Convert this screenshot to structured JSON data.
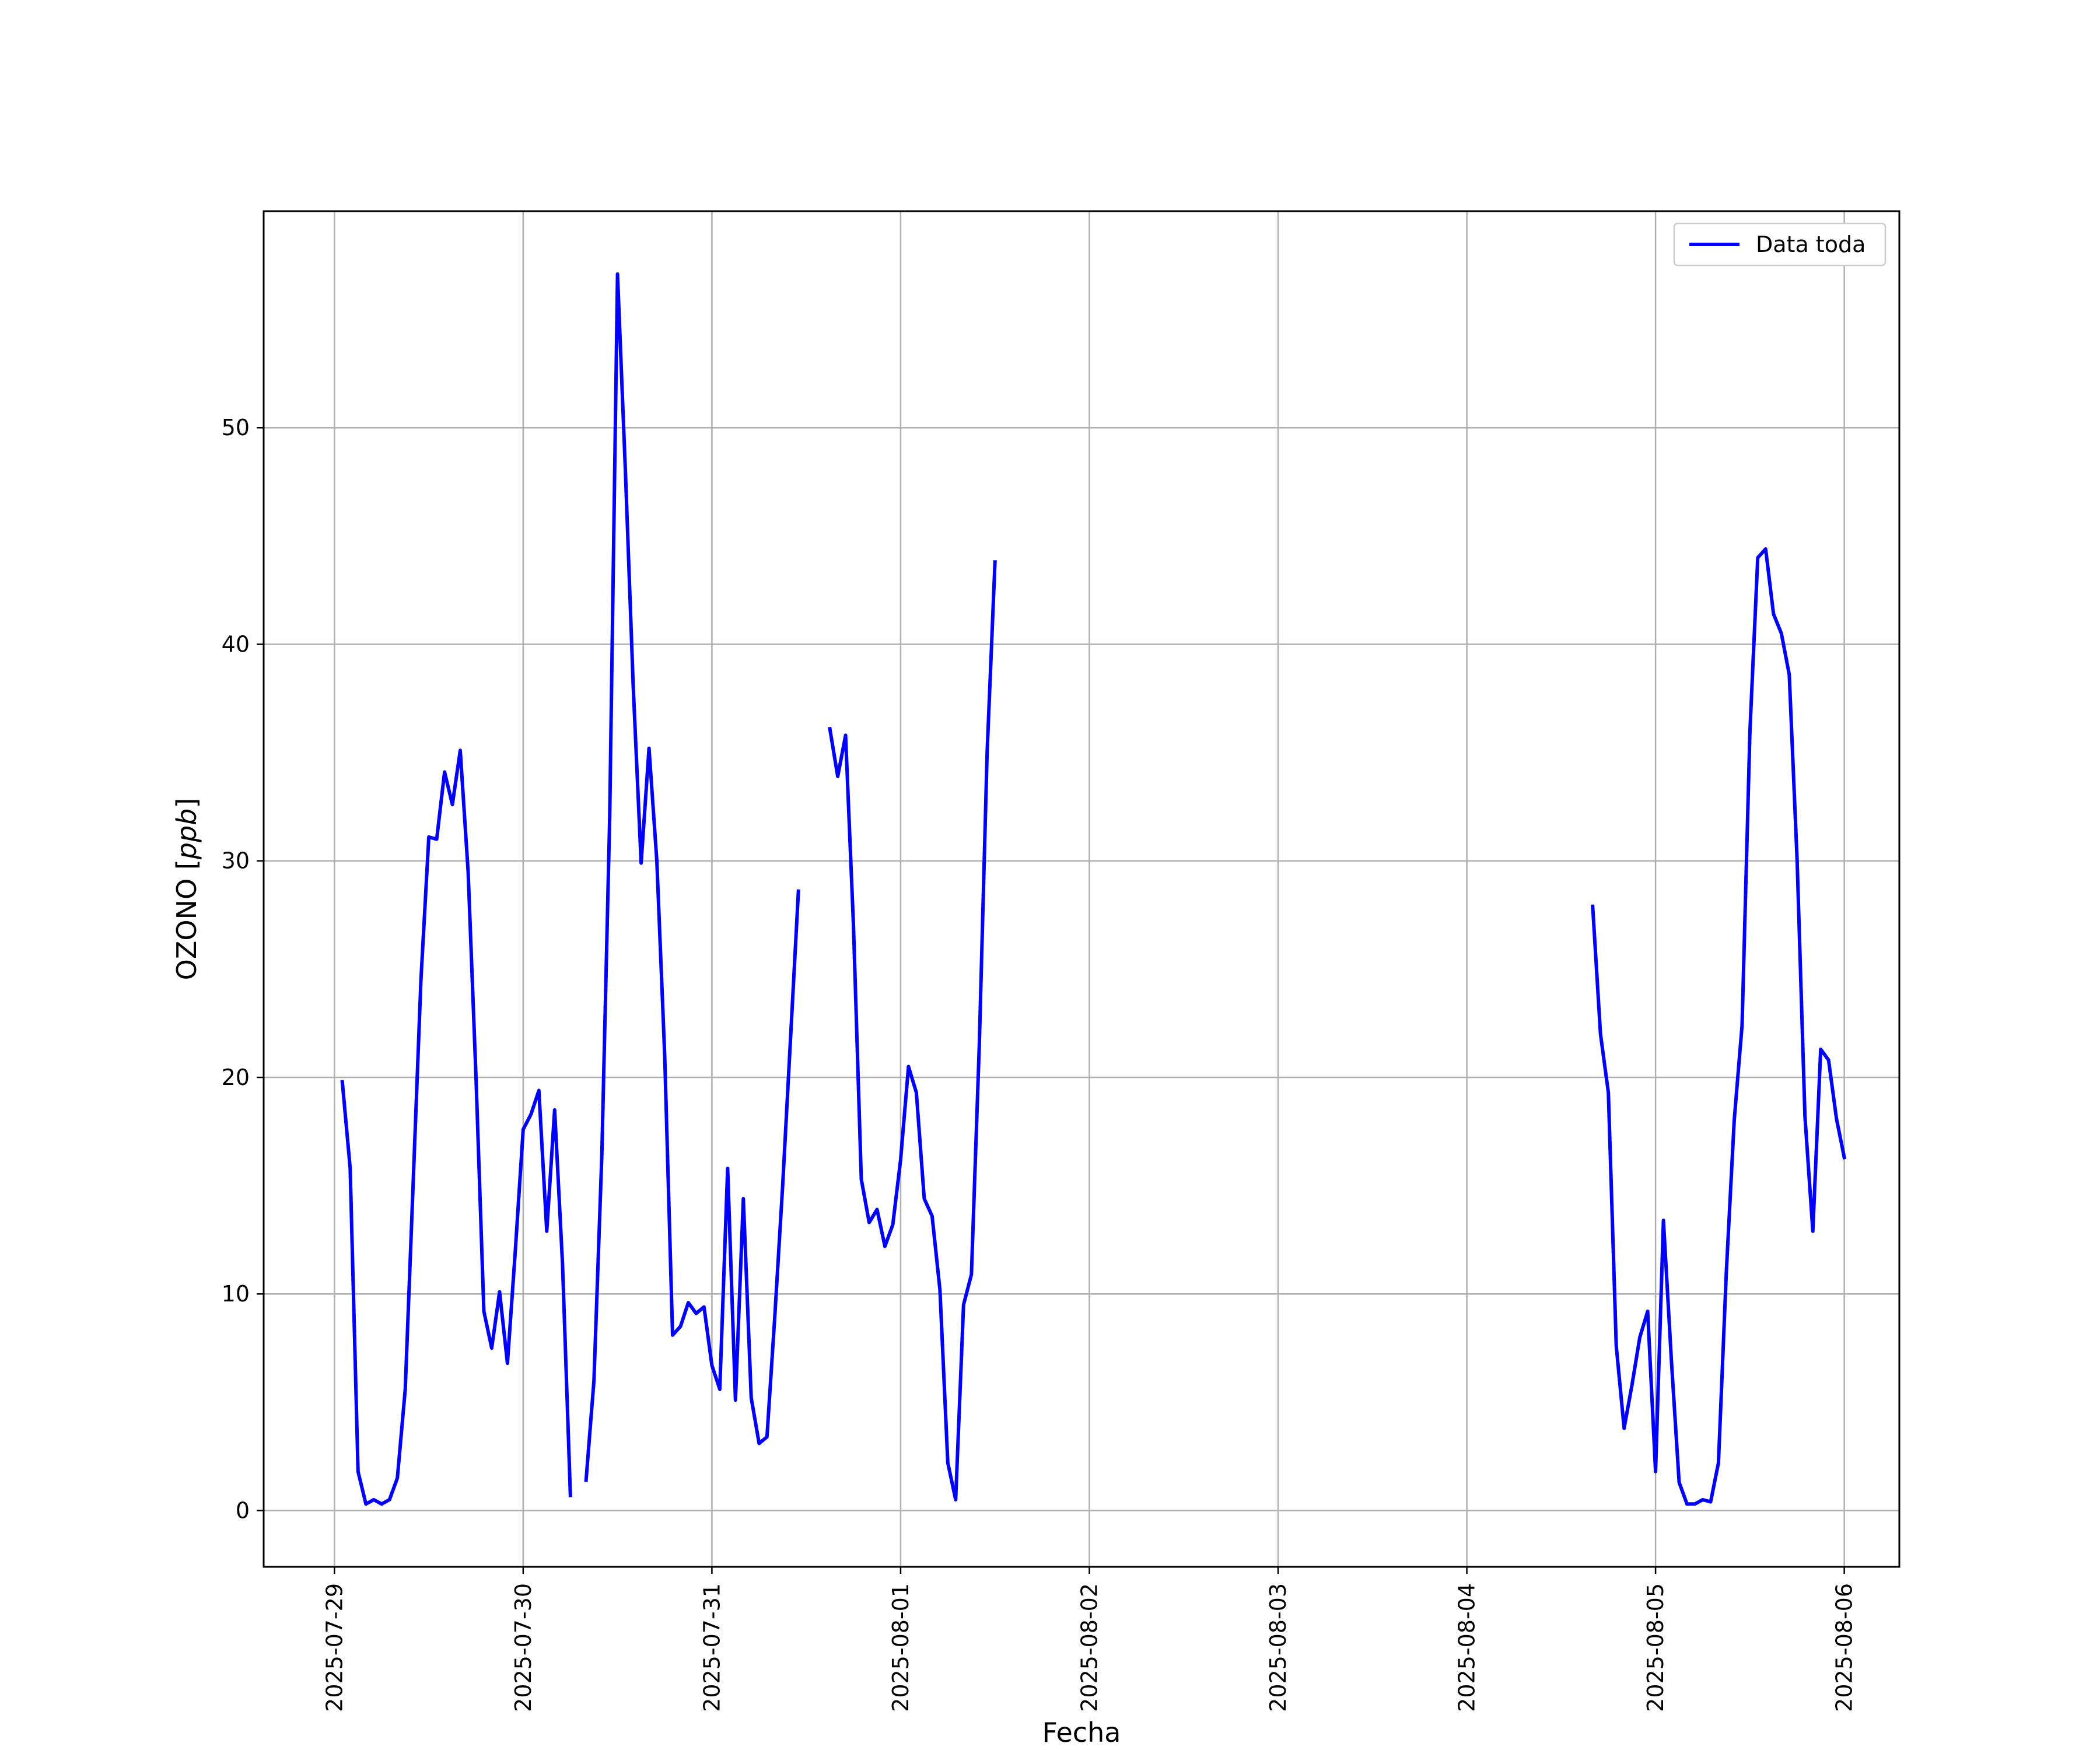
{
  "chart_data": {
    "type": "line",
    "title": "",
    "xlabel": "Fecha",
    "ylabel_main": "OZONO [",
    "ylabel_unit": "ppb",
    "ylabel_end": "]",
    "x_start": "2025-07-29",
    "xlim": [
      "2025-07-28 15:00",
      "2025-08-06 07:00"
    ],
    "ylim": [
      -2.6,
      60.0
    ],
    "xticks": [
      "2025-07-29",
      "2025-07-30",
      "2025-07-31",
      "2025-08-01",
      "2025-08-02",
      "2025-08-03",
      "2025-08-04",
      "2025-08-05",
      "2025-08-06"
    ],
    "yticks": [
      0,
      10,
      20,
      30,
      40,
      50
    ],
    "grid": true,
    "legend": "top-right",
    "color": "#0000ff",
    "series": [
      {
        "name": "Data toda",
        "points": [
          [
            "2025-07-29 01:00",
            19.8
          ],
          [
            "2025-07-29 02:00",
            15.8
          ],
          [
            "2025-07-29 03:00",
            1.8
          ],
          [
            "2025-07-29 04:00",
            0.3
          ],
          [
            "2025-07-29 05:00",
            0.5
          ],
          [
            "2025-07-29 06:00",
            0.3
          ],
          [
            "2025-07-29 07:00",
            0.5
          ],
          [
            "2025-07-29 08:00",
            1.5
          ],
          [
            "2025-07-29 09:00",
            5.6
          ],
          [
            "2025-07-29 10:00",
            15.0
          ],
          [
            "2025-07-29 11:00",
            24.5
          ],
          [
            "2025-07-29 12:00",
            31.1
          ],
          [
            "2025-07-29 13:00",
            31.0
          ],
          [
            "2025-07-29 14:00",
            34.1
          ],
          [
            "2025-07-29 15:00",
            32.6
          ],
          [
            "2025-07-29 16:00",
            35.1
          ],
          [
            "2025-07-29 17:00",
            29.5
          ],
          [
            "2025-07-29 18:00",
            20.0
          ],
          [
            "2025-07-29 19:00",
            9.2
          ],
          [
            "2025-07-29 20:00",
            7.5
          ],
          [
            "2025-07-29 21:00",
            10.1
          ],
          [
            "2025-07-29 22:00",
            6.8
          ],
          [
            "2025-07-29 23:00",
            12.0
          ],
          [
            "2025-07-30 00:00",
            17.6
          ],
          [
            "2025-07-30 01:00",
            18.3
          ],
          [
            "2025-07-30 02:00",
            19.4
          ],
          [
            "2025-07-30 03:00",
            12.9
          ],
          [
            "2025-07-30 04:00",
            18.5
          ],
          [
            "2025-07-30 05:00",
            11.4
          ],
          [
            "2025-07-30 06:00",
            0.7
          ],
          null,
          [
            "2025-07-30 08:00",
            1.4
          ],
          [
            "2025-07-30 09:00",
            6.0
          ],
          [
            "2025-07-30 10:00",
            16.4
          ],
          [
            "2025-07-30 11:00",
            32.0
          ],
          [
            "2025-07-30 12:00",
            57.1
          ],
          [
            "2025-07-30 13:00",
            48.0
          ],
          [
            "2025-07-30 14:00",
            38.0
          ],
          [
            "2025-07-30 15:00",
            29.9
          ],
          [
            "2025-07-30 16:00",
            35.2
          ],
          [
            "2025-07-30 17:00",
            30.0
          ],
          [
            "2025-07-30 18:00",
            21.0
          ],
          [
            "2025-07-30 19:00",
            8.1
          ],
          [
            "2025-07-30 20:00",
            8.5
          ],
          [
            "2025-07-30 21:00",
            9.6
          ],
          [
            "2025-07-30 22:00",
            9.1
          ],
          [
            "2025-07-30 23:00",
            9.4
          ],
          [
            "2025-07-31 00:00",
            6.7
          ],
          [
            "2025-07-31 01:00",
            5.6
          ],
          [
            "2025-07-31 02:00",
            15.8
          ],
          [
            "2025-07-31 03:00",
            5.1
          ],
          [
            "2025-07-31 04:00",
            14.4
          ],
          [
            "2025-07-31 05:00",
            5.2
          ],
          [
            "2025-07-31 06:00",
            3.1
          ],
          [
            "2025-07-31 07:00",
            3.4
          ],
          [
            "2025-07-31 08:00",
            9.0
          ],
          [
            "2025-07-31 09:00",
            15.0
          ],
          [
            "2025-07-31 10:00",
            21.8
          ],
          [
            "2025-07-31 11:00",
            28.6
          ],
          null,
          [
            "2025-07-31 15:00",
            36.1
          ],
          [
            "2025-07-31 16:00",
            33.9
          ],
          [
            "2025-07-31 17:00",
            35.8
          ],
          [
            "2025-07-31 18:00",
            27.0
          ],
          [
            "2025-07-31 19:00",
            15.3
          ],
          [
            "2025-07-31 20:00",
            13.3
          ],
          [
            "2025-07-31 21:00",
            13.9
          ],
          [
            "2025-07-31 22:00",
            12.2
          ],
          [
            "2025-07-31 23:00",
            13.2
          ],
          [
            "2025-08-01 00:00",
            16.2
          ],
          [
            "2025-08-01 01:00",
            20.5
          ],
          [
            "2025-08-01 02:00",
            19.3
          ],
          [
            "2025-08-01 03:00",
            14.4
          ],
          [
            "2025-08-01 04:00",
            13.6
          ],
          [
            "2025-08-01 05:00",
            10.2
          ],
          [
            "2025-08-01 06:00",
            2.2
          ],
          [
            "2025-08-01 07:00",
            0.5
          ],
          [
            "2025-08-01 08:00",
            9.5
          ],
          [
            "2025-08-01 09:00",
            10.9
          ],
          [
            "2025-08-01 10:00",
            21.5
          ],
          [
            "2025-08-01 11:00",
            35.0
          ],
          [
            "2025-08-01 12:00",
            43.8
          ],
          null,
          [
            "2025-08-04 16:00",
            27.9
          ],
          [
            "2025-08-04 17:00",
            22.0
          ],
          [
            "2025-08-04 18:00",
            19.3
          ],
          [
            "2025-08-04 19:00",
            7.6
          ],
          [
            "2025-08-04 20:00",
            3.8
          ],
          [
            "2025-08-04 21:00",
            5.8
          ],
          [
            "2025-08-04 22:00",
            8.0
          ],
          [
            "2025-08-04 23:00",
            9.2
          ],
          [
            "2025-08-05 00:00",
            1.8
          ],
          [
            "2025-08-05 01:00",
            13.4
          ],
          [
            "2025-08-05 02:00",
            7.0
          ],
          [
            "2025-08-05 03:00",
            1.3
          ],
          [
            "2025-08-05 04:00",
            0.3
          ],
          [
            "2025-08-05 05:00",
            0.3
          ],
          [
            "2025-08-05 06:00",
            0.5
          ],
          [
            "2025-08-05 07:00",
            0.4
          ],
          [
            "2025-08-05 08:00",
            2.2
          ],
          [
            "2025-08-05 09:00",
            11.0
          ],
          [
            "2025-08-05 10:00",
            18.0
          ],
          [
            "2025-08-05 11:00",
            22.4
          ],
          [
            "2025-08-05 12:00",
            36.0
          ],
          [
            "2025-08-05 13:00",
            44.0
          ],
          [
            "2025-08-05 14:00",
            44.4
          ],
          [
            "2025-08-05 15:00",
            41.4
          ],
          [
            "2025-08-05 16:00",
            40.5
          ],
          [
            "2025-08-05 17:00",
            38.6
          ],
          [
            "2025-08-05 18:00",
            30.0
          ],
          [
            "2025-08-05 19:00",
            18.2
          ],
          [
            "2025-08-05 20:00",
            12.9
          ],
          [
            "2025-08-05 21:00",
            21.3
          ],
          [
            "2025-08-05 22:00",
            20.8
          ],
          [
            "2025-08-05 23:00",
            18.1
          ],
          [
            "2025-08-06 00:00",
            16.3
          ]
        ]
      }
    ]
  }
}
